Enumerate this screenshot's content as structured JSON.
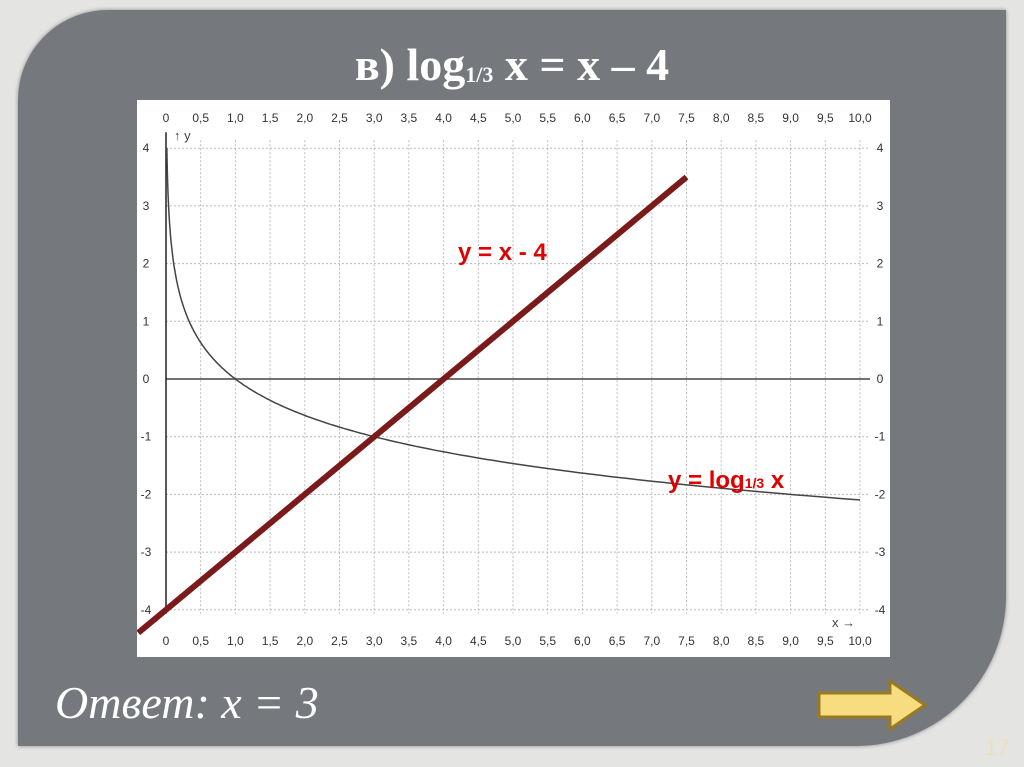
{
  "slide": {
    "title_prefix": "в) log",
    "title_base": "1/3",
    "title_suffix": " x = x – 4",
    "answer": "Ответ: x = 3",
    "page_number": "17",
    "next_arrow_icon": "arrow-right-icon",
    "colors": {
      "panel": "#75787d",
      "line": "#7a1a1a",
      "label": "#e00000",
      "curve": "#444444",
      "arrow": "#f8dc80"
    }
  },
  "chart_data": {
    "type": "line",
    "xlim": [
      0,
      10
    ],
    "ylim": [
      -4,
      4
    ],
    "x_ticks": [
      "0",
      "0,5",
      "1,0",
      "1,5",
      "2,0",
      "2,5",
      "3,0",
      "3,5",
      "4,0",
      "4,5",
      "5,0",
      "5,5",
      "6,0",
      "6,5",
      "7,0",
      "7,5",
      "8,0",
      "8,5",
      "9,0",
      "9,5",
      "10,0"
    ],
    "y_ticks": [
      "4",
      "3",
      "2",
      "1",
      "0",
      "-1",
      "-2",
      "-3",
      "-4"
    ],
    "xlabel": "x",
    "ylabel": "y",
    "grid": true,
    "series": [
      {
        "name": "y = x - 4",
        "function": "x - 4",
        "x_range": [
          -0.4,
          7.5
        ],
        "color": "#7a1a1a"
      },
      {
        "name_prefix": "y = log",
        "name_base": "1/3",
        "name_suffix": " x",
        "function": "log1/3(x)",
        "x_range": [
          0.0123,
          10
        ],
        "color": "#444444"
      }
    ],
    "intersection": {
      "x": 3,
      "y": -1
    }
  }
}
